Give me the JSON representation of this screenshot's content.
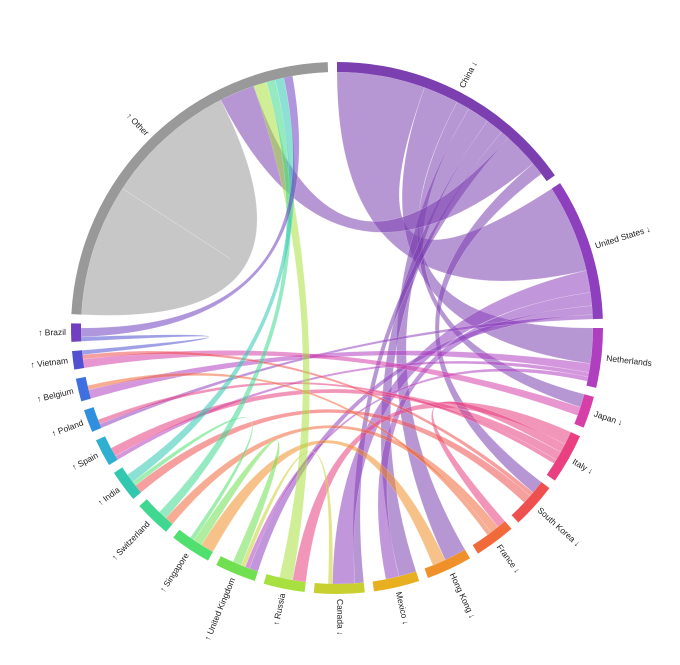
{
  "chart_data": {
    "type": "chord",
    "groups": [
      {
        "label": "China ↓",
        "value": 55,
        "color": "#7b3fb0"
      },
      {
        "label": "United States ↓",
        "value": 31,
        "color": "#8e3fbe"
      },
      {
        "label": "Netherlands",
        "value": 13,
        "color": "#b03fc0"
      },
      {
        "label": "Japan ↓",
        "value": 7,
        "color": "#d63fa8"
      },
      {
        "label": "Italy ↓",
        "value": 11,
        "color": "#e84080"
      },
      {
        "label": "South Korea ↓",
        "value": 10,
        "color": "#ee5050"
      },
      {
        "label": "France ↓",
        "value": 9,
        "color": "#f06a3a"
      },
      {
        "label": "Hong Kong ↓",
        "value": 10,
        "color": "#f0902a"
      },
      {
        "label": "Mexico ↓",
        "value": 10,
        "color": "#e8b020"
      },
      {
        "label": "Canada ↓",
        "value": 11,
        "color": "#c8d030"
      },
      {
        "label": "↑ Russia",
        "value": 9,
        "color": "#a8e040"
      },
      {
        "label": "↑ United Kingdom",
        "value": 9,
        "color": "#70e050"
      },
      {
        "label": "↑ Singapore",
        "value": 9,
        "color": "#50e070"
      },
      {
        "label": "↑ Switzerland",
        "value": 8,
        "color": "#40d890"
      },
      {
        "label": "↑ India",
        "value": 7,
        "color": "#30c8b0"
      },
      {
        "label": "↑ Spain",
        "value": 6,
        "color": "#30b0d0"
      },
      {
        "label": "↑ Poland",
        "value": 5,
        "color": "#3090e0"
      },
      {
        "label": "↑ Belgium",
        "value": 5,
        "color": "#4070e0"
      },
      {
        "label": "↑ Vietnam",
        "value": 4,
        "color": "#5050d0"
      },
      {
        "label": "↑ Brazil",
        "value": 4,
        "color": "#7040c0"
      },
      {
        "label": "↑ Other",
        "value": 85,
        "color": "#999999"
      }
    ],
    "flows": [
      {
        "source": 20,
        "target": 20,
        "value": 30
      },
      {
        "source": 0,
        "target": 1,
        "value": 20
      },
      {
        "source": 0,
        "target": 2,
        "value": 8
      },
      {
        "source": 0,
        "target": 3,
        "value": 3
      },
      {
        "source": 0,
        "target": 7,
        "value": 5
      },
      {
        "source": 0,
        "target": 8,
        "value": 4
      },
      {
        "source": 0,
        "target": 9,
        "value": 2
      },
      {
        "source": 0,
        "target": 20,
        "value": 8
      },
      {
        "source": 0,
        "target": 5,
        "value": 3
      },
      {
        "source": 1,
        "target": 9,
        "value": 5
      },
      {
        "source": 1,
        "target": 8,
        "value": 3
      },
      {
        "source": 1,
        "target": 11,
        "value": 2
      },
      {
        "source": 1,
        "target": 16,
        "value": 1
      },
      {
        "source": 2,
        "target": 17,
        "value": 2
      },
      {
        "source": 2,
        "target": 15,
        "value": 1
      },
      {
        "source": 2,
        "target": 11,
        "value": 1
      },
      {
        "source": 3,
        "target": 18,
        "value": 2
      },
      {
        "source": 4,
        "target": 10,
        "value": 3
      },
      {
        "source": 4,
        "target": 6,
        "value": 2
      },
      {
        "source": 4,
        "target": 15,
        "value": 2
      },
      {
        "source": 4,
        "target": 16,
        "value": 1
      },
      {
        "source": 5,
        "target": 18,
        "value": 1
      },
      {
        "source": 5,
        "target": 14,
        "value": 2
      },
      {
        "source": 6,
        "target": 13,
        "value": 2
      },
      {
        "source": 6,
        "target": 17,
        "value": 1
      },
      {
        "source": 7,
        "target": 12,
        "value": 3
      },
      {
        "source": 9,
        "target": 11,
        "value": 1
      },
      {
        "source": 10,
        "target": 20,
        "value": 3
      },
      {
        "source": 11,
        "target": 12,
        "value": 2
      },
      {
        "source": 12,
        "target": 14,
        "value": 1
      },
      {
        "source": 13,
        "target": 20,
        "value": 2
      },
      {
        "source": 14,
        "target": 20,
        "value": 2
      },
      {
        "source": 18,
        "target": 19,
        "value": 1
      },
      {
        "source": 19,
        "target": 20,
        "value": 2
      }
    ]
  }
}
